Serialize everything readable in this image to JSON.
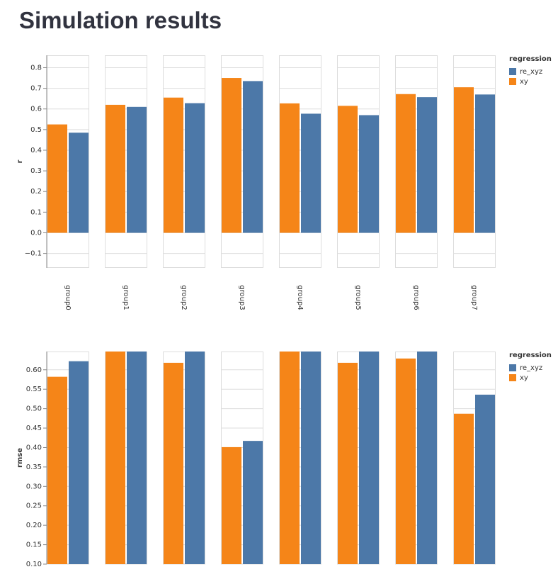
{
  "page": {
    "title": "Simulation results"
  },
  "chart_data": [
    {
      "type": "bar",
      "y_label": "r",
      "categories": [
        "group0",
        "group1",
        "group2",
        "group3",
        "group4",
        "group5",
        "group6",
        "group7"
      ],
      "series": [
        {
          "name": "xy",
          "color": "#f58518",
          "values": [
            0.525,
            0.62,
            0.655,
            0.75,
            0.627,
            0.615,
            0.672,
            0.705
          ]
        },
        {
          "name": "re_xyz",
          "color": "#4c78a8",
          "values": [
            0.485,
            0.61,
            0.628,
            0.735,
            0.577,
            0.57,
            0.657,
            0.67
          ]
        }
      ],
      "legend_title": "regression",
      "legend_order": [
        "re_xyz",
        "xy"
      ],
      "ylim": [
        -0.17,
        0.86
      ],
      "yticks": [
        {
          "value": -0.1,
          "label": "−0.1"
        },
        {
          "value": 0,
          "label": "0.0"
        },
        0.1,
        0.2,
        0.3,
        0.4,
        0.5,
        0.6,
        0.7,
        0.8
      ],
      "grid": true
    },
    {
      "type": "bar",
      "y_label": "rmse",
      "series": [
        {
          "name": "xy",
          "color": "#f58518",
          "values": [
            0.582,
            0.65,
            0.618,
            0.401,
            0.65,
            0.618,
            0.629,
            0.487
          ]
        },
        {
          "name": "re_xyz",
          "color": "#4c78a8",
          "values": [
            0.622,
            0.65,
            0.65,
            0.417,
            0.65,
            0.65,
            0.65,
            0.536
          ]
        }
      ],
      "legend_title": "regression",
      "legend_order": [
        "re_xyz",
        "xy"
      ],
      "ylim": [
        0.1,
        0.647
      ],
      "yticks": [
        {
          "value": 0.1,
          "label": "0.10"
        },
        {
          "value": 0.15,
          "label": "0.15"
        },
        {
          "value": 0.2,
          "label": "0.20"
        },
        {
          "value": 0.25,
          "label": "0.25"
        },
        {
          "value": 0.3,
          "label": "0.30"
        },
        {
          "value": 0.35,
          "label": "0.35"
        },
        {
          "value": 0.4,
          "label": "0.40"
        },
        {
          "value": 0.45,
          "label": "0.45"
        },
        {
          "value": 0.5,
          "label": "0.50"
        },
        {
          "value": 0.55,
          "label": "0.55"
        },
        {
          "value": 0.6,
          "label": "0.60"
        }
      ],
      "grid": true
    }
  ]
}
